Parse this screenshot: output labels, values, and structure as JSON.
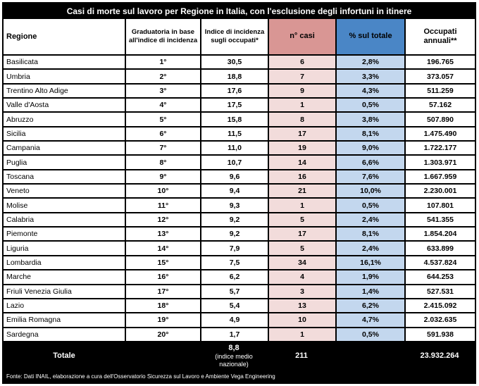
{
  "title": "Casi di morte sul lavoro per Regione in Italia, con l'esclusione degli infortuni in itinere",
  "colors": {
    "header_bar": "#000000",
    "header_text": "#ffffff",
    "cases_header": "#d99694",
    "percent_header": "#4a86c6",
    "cases_cell": "#f2dcdb",
    "percent_cell": "#c3d7ee"
  },
  "chart_data": {
    "type": "table",
    "title": "Casi di morte sul lavoro per Regione in Italia, con l'esclusione degli infortuni in itinere",
    "columns": [
      "Regione",
      "Graduatoria in base all'indice di incidenza",
      "Indice di incidenza sugli occupati*",
      "n° casi",
      "% sul totale",
      "Occupati annuali**"
    ],
    "rows": [
      [
        "Basilicata",
        "1°",
        "30,5",
        "6",
        "2,8%",
        "196.765"
      ],
      [
        "Umbria",
        "2°",
        "18,8",
        "7",
        "3,3%",
        "373.057"
      ],
      [
        "Trentino Alto Adige",
        "3°",
        "17,6",
        "9",
        "4,3%",
        "511.259"
      ],
      [
        "Valle d'Aosta",
        "4°",
        "17,5",
        "1",
        "0,5%",
        "57.162"
      ],
      [
        "Abruzzo",
        "5°",
        "15,8",
        "8",
        "3,8%",
        "507.890"
      ],
      [
        "Sicilia",
        "6°",
        "11,5",
        "17",
        "8,1%",
        "1.475.490"
      ],
      [
        "Campania",
        "7°",
        "11,0",
        "19",
        "9,0%",
        "1.722.177"
      ],
      [
        "Puglia",
        "8°",
        "10,7",
        "14",
        "6,6%",
        "1.303.971"
      ],
      [
        "Toscana",
        "9°",
        "9,6",
        "16",
        "7,6%",
        "1.667.959"
      ],
      [
        "Veneto",
        "10°",
        "9,4",
        "21",
        "10,0%",
        "2.230.001"
      ],
      [
        "Molise",
        "11°",
        "9,3",
        "1",
        "0,5%",
        "107.801"
      ],
      [
        "Calabria",
        "12°",
        "9,2",
        "5",
        "2,4%",
        "541.355"
      ],
      [
        "Piemonte",
        "13°",
        "9,2",
        "17",
        "8,1%",
        "1.854.204"
      ],
      [
        "Liguria",
        "14°",
        "7,9",
        "5",
        "2,4%",
        "633.899"
      ],
      [
        "Lombardia",
        "15°",
        "7,5",
        "34",
        "16,1%",
        "4.537.824"
      ],
      [
        "Marche",
        "16°",
        "6,2",
        "4",
        "1,9%",
        "644.253"
      ],
      [
        "Friuli Venezia Giulia",
        "17°",
        "5,7",
        "3",
        "1,4%",
        "527.531"
      ],
      [
        "Lazio",
        "18°",
        "5,4",
        "13",
        "6,2%",
        "2.415.092"
      ],
      [
        "Emilia Romagna",
        "19°",
        "4,9",
        "10",
        "4,7%",
        "2.032.635"
      ],
      [
        "Sardegna",
        "20°",
        "1,7",
        "1",
        "0,5%",
        "591.938"
      ]
    ],
    "totals_row": {
      "label": "Totale",
      "indice": "8,8",
      "indice_note": "(indice medio nazionale)",
      "casi": "211",
      "occupati": "23.932.264"
    },
    "footer": "Fonte: Dati INAIL, elaborazione a cura dell'Osservatorio Sicurezza sul Lavoro e Ambiente Vega Engineering"
  }
}
